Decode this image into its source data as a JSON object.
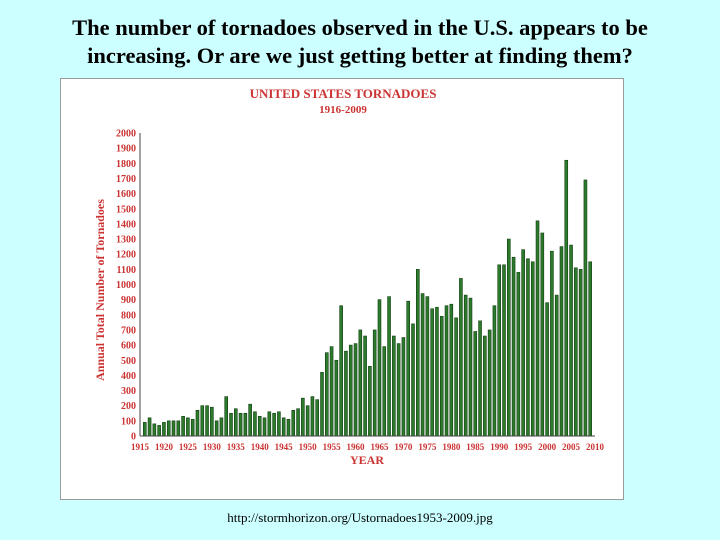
{
  "slide": {
    "title_line1": "The number of tornadoes observed in the U.S. appears to be",
    "title_line2": "increasing.  Or are we just getting better at finding them?",
    "caption": "http://stormhorizon.org/Ustornadoes1953-2009.jpg"
  },
  "colors": {
    "background": "#ccffff",
    "bar": "#2d7a2d",
    "bar_edge": "#0f3f0f",
    "chart_title": "#cc3333",
    "axis_text": "#cc3333"
  },
  "chart_data": {
    "type": "bar",
    "title": "UNITED STATES TORNADOES",
    "subtitle": "1916-2009",
    "xlabel": "YEAR",
    "ylabel": "Annual Total Number of Tornadoes",
    "xlim": [
      1915,
      2010
    ],
    "ylim": [
      0,
      2000
    ],
    "yticks": [
      0,
      100,
      200,
      300,
      400,
      500,
      600,
      700,
      800,
      900,
      1000,
      1100,
      1200,
      1300,
      1400,
      1500,
      1600,
      1700,
      1800,
      1900,
      2000
    ],
    "xticks": [
      1915,
      1920,
      1925,
      1930,
      1935,
      1940,
      1945,
      1950,
      1955,
      1960,
      1965,
      1970,
      1975,
      1980,
      1985,
      1990,
      1995,
      2000,
      2005,
      2010
    ],
    "grid": false,
    "x": [
      1916,
      1917,
      1918,
      1919,
      1920,
      1921,
      1922,
      1923,
      1924,
      1925,
      1926,
      1927,
      1928,
      1929,
      1930,
      1931,
      1932,
      1933,
      1934,
      1935,
      1936,
      1937,
      1938,
      1939,
      1940,
      1941,
      1942,
      1943,
      1944,
      1945,
      1946,
      1947,
      1948,
      1949,
      1950,
      1951,
      1952,
      1953,
      1954,
      1955,
      1956,
      1957,
      1958,
      1959,
      1960,
      1961,
      1962,
      1963,
      1964,
      1965,
      1966,
      1967,
      1968,
      1969,
      1970,
      1971,
      1972,
      1973,
      1974,
      1975,
      1976,
      1977,
      1978,
      1979,
      1980,
      1981,
      1982,
      1983,
      1984,
      1985,
      1986,
      1987,
      1988,
      1989,
      1990,
      1991,
      1992,
      1993,
      1994,
      1995,
      1996,
      1997,
      1998,
      1999,
      2000,
      2001,
      2002,
      2003,
      2004,
      2005,
      2006,
      2007,
      2008,
      2009
    ],
    "values": [
      90,
      120,
      80,
      70,
      90,
      100,
      100,
      100,
      130,
      120,
      110,
      170,
      200,
      200,
      190,
      100,
      120,
      260,
      150,
      180,
      150,
      150,
      210,
      160,
      130,
      120,
      160,
      150,
      160,
      120,
      110,
      170,
      180,
      250,
      200,
      260,
      240,
      420,
      550,
      590,
      500,
      860,
      560,
      600,
      610,
      700,
      660,
      460,
      700,
      900,
      590,
      920,
      660,
      610,
      650,
      890,
      740,
      1100,
      940,
      920,
      840,
      850,
      790,
      860,
      870,
      780,
      1040,
      930,
      910,
      690,
      760,
      660,
      700,
      860,
      1130,
      1130,
      1300,
      1180,
      1080,
      1230,
      1170,
      1150,
      1420,
      1340,
      880,
      1220,
      930,
      1250,
      1820,
      1260,
      1110,
      1100,
      1690,
      1150
    ]
  }
}
